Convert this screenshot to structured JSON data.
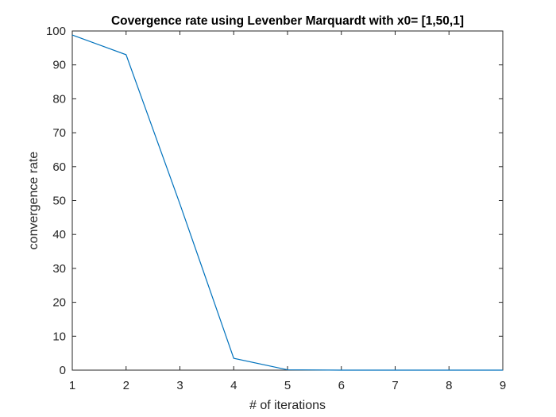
{
  "chart_data": {
    "type": "line",
    "title": "Covergence rate using Levenber Marquardt with x0= [1,50,1]",
    "xlabel": "# of iterations",
    "ylabel": "convergence rate",
    "xlim": [
      1,
      9
    ],
    "ylim": [
      0,
      100
    ],
    "xticks": [
      1,
      2,
      3,
      4,
      5,
      6,
      7,
      8,
      9
    ],
    "yticks": [
      0,
      10,
      20,
      30,
      40,
      50,
      60,
      70,
      80,
      90,
      100
    ],
    "grid": false,
    "series": [
      {
        "x": [
          1,
          2,
          3,
          4,
          5,
          6,
          7,
          8,
          9
        ],
        "values": [
          98.8,
          93.0,
          49.0,
          3.5,
          0.1,
          0,
          0,
          0,
          0
        ],
        "color": "#0072BD"
      }
    ]
  }
}
